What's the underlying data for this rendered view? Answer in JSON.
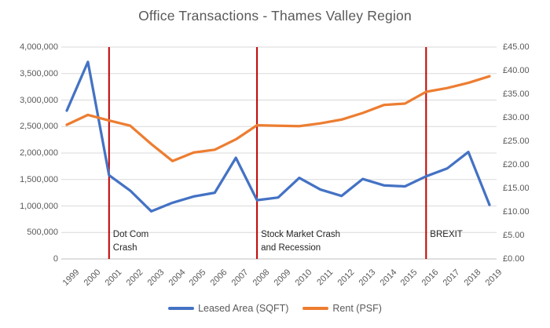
{
  "title": "Office Transactions - Thames Valley Region",
  "colors": {
    "leased_series": "#4472C4",
    "rent_series": "#ED7D31",
    "event_line": "#C00000",
    "gridline": "#D9D9D9",
    "axis_line": "#BFBFBF",
    "axis_text": "#595959",
    "title_text": "#595959",
    "annotation_text": "#262626",
    "background": "#FFFFFF"
  },
  "chart_data": {
    "type": "line",
    "title": "Office Transactions - Thames Valley Region",
    "x": [
      "1999",
      "2000",
      "2001",
      "2002",
      "2003",
      "2004",
      "2005",
      "2006",
      "2007",
      "2008",
      "2009",
      "2010",
      "2011",
      "2012",
      "2013",
      "2014",
      "2015",
      "2016",
      "2017",
      "2018",
      "2019"
    ],
    "series": [
      {
        "name": "Leased Area (SQFT)",
        "axis": "left",
        "color": "#4472C4",
        "values": [
          2800000,
          3720000,
          1580000,
          1290000,
          900000,
          1060000,
          1180000,
          1250000,
          1910000,
          1110000,
          1160000,
          1530000,
          1310000,
          1190000,
          1510000,
          1390000,
          1370000,
          1560000,
          1710000,
          2020000,
          1020000
        ]
      },
      {
        "name": "Rent (PSF)",
        "axis": "right",
        "color": "#ED7D31",
        "values": [
          28.5,
          30.6,
          29.4,
          28.3,
          24.4,
          20.8,
          22.6,
          23.2,
          25.4,
          28.4,
          28.3,
          28.2,
          28.8,
          29.6,
          31.0,
          32.7,
          33.0,
          35.5,
          36.3,
          37.4,
          38.8
        ]
      }
    ],
    "left_axis": {
      "min": 0,
      "max": 4000000,
      "step": 500000,
      "tick_labels": [
        "0",
        "500,000",
        "1,000,000",
        "1,500,000",
        "2,000,000",
        "2,500,000",
        "3,000,000",
        "3,500,000",
        "4,000,000"
      ]
    },
    "right_axis": {
      "min": 0,
      "max": 45,
      "step": 5,
      "tick_labels": [
        "£0.00",
        "£5.00",
        "£10.00",
        "£15.00",
        "£20.00",
        "£25.00",
        "£30.00",
        "£35.00",
        "£40.00",
        "£45.00"
      ]
    },
    "grid": true,
    "legend_position": "bottom",
    "annotations": [
      {
        "x": "2001",
        "lines": [
          "Dot Com",
          "Crash"
        ]
      },
      {
        "x": "2008",
        "lines": [
          "Stock Market Crash",
          "and Recession"
        ]
      },
      {
        "x": "2016",
        "lines": [
          "BREXIT"
        ]
      }
    ]
  },
  "legend": {
    "items": [
      {
        "label": "Leased Area (SQFT)",
        "color": "#4472C4"
      },
      {
        "label": "Rent (PSF)",
        "color": "#ED7D31"
      }
    ]
  }
}
